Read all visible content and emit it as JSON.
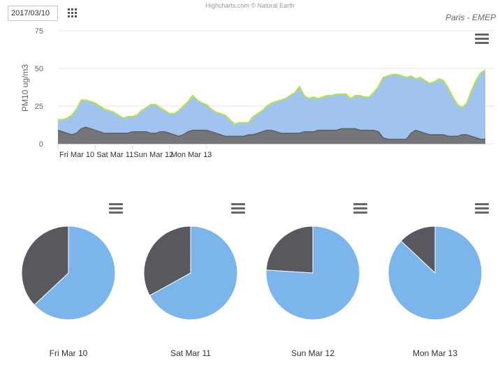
{
  "controls": {
    "date_value": "2017/03/10",
    "grid_icon": "grid-icon",
    "menu_icon": "menu-icon"
  },
  "header": {
    "credits": "Highcharts.com © Natural Earth",
    "subtitle": "Paris - EMEP"
  },
  "colors": {
    "area_blue": "#a0c4ef",
    "area_gray": "#75757a",
    "line_green": "#b6e34a",
    "pie_blue": "#7cb5ec",
    "pie_gray": "#58585e"
  },
  "chart_data": [
    {
      "type": "area",
      "ylabel": "PM10 ug/m3",
      "ylim": [
        0,
        75
      ],
      "yticks": [
        "0",
        "25",
        "50",
        "75"
      ],
      "xlabels": [
        "Fri Mar 10",
        "Sat Mar 11",
        "Sun Mar 12",
        "Mon Mar 13",
        "..."
      ],
      "x_start_hour": 0,
      "x_step_hours": 3,
      "series": [
        {
          "role": "total",
          "values": [
            16,
            16,
            17,
            19,
            23,
            29,
            29,
            28,
            27,
            25,
            23,
            22,
            21,
            19,
            17,
            18,
            18,
            19,
            22,
            24,
            26,
            26,
            24,
            22,
            20,
            20,
            22,
            25,
            28,
            32,
            29,
            27,
            26,
            23,
            21,
            20,
            19,
            16,
            13,
            14,
            14,
            14,
            18,
            20,
            22,
            25,
            27,
            28,
            29,
            30,
            32,
            34,
            38,
            32,
            30,
            31,
            30,
            31,
            32,
            32,
            33,
            33,
            33,
            30,
            32,
            32,
            31,
            31,
            34,
            38,
            44,
            45,
            46,
            46,
            45,
            44,
            45,
            43,
            44,
            42,
            40,
            41,
            43,
            42,
            37,
            31,
            26,
            24,
            27,
            35,
            42,
            47,
            49
          ]
        },
        {
          "role": "component",
          "values": [
            9,
            8,
            7,
            6,
            7,
            10,
            11,
            10,
            9,
            8,
            7,
            7,
            7,
            7,
            7,
            7,
            8,
            8,
            8,
            8,
            7,
            7,
            8,
            8,
            7,
            6,
            5,
            6,
            8,
            9,
            9,
            9,
            9,
            8,
            7,
            6,
            5,
            5,
            5,
            5,
            5,
            6,
            6,
            7,
            8,
            9,
            9,
            8,
            7,
            7,
            7,
            7,
            7,
            8,
            8,
            8,
            9,
            9,
            9,
            9,
            9,
            10,
            10,
            10,
            10,
            9,
            9,
            9,
            9,
            8,
            4,
            3,
            3,
            3,
            3,
            3,
            7,
            9,
            8,
            7,
            6,
            6,
            6,
            6,
            5,
            5,
            5,
            6,
            6,
            5,
            4,
            3,
            3
          ]
        }
      ]
    },
    {
      "type": "pie",
      "label": "Fri Mar 10",
      "slices": [
        {
          "color": "pie_blue",
          "value": 63
        },
        {
          "color": "pie_gray",
          "value": 37
        }
      ]
    },
    {
      "type": "pie",
      "label": "Sat Mar 11",
      "slices": [
        {
          "color": "pie_blue",
          "value": 67
        },
        {
          "color": "pie_gray",
          "value": 33
        }
      ]
    },
    {
      "type": "pie",
      "label": "Sun Mar 12",
      "slices": [
        {
          "color": "pie_blue",
          "value": 76
        },
        {
          "color": "pie_gray",
          "value": 24
        }
      ]
    },
    {
      "type": "pie",
      "label": "Mon Mar 13",
      "slices": [
        {
          "color": "pie_blue",
          "value": 87
        },
        {
          "color": "pie_gray",
          "value": 13
        }
      ]
    }
  ]
}
